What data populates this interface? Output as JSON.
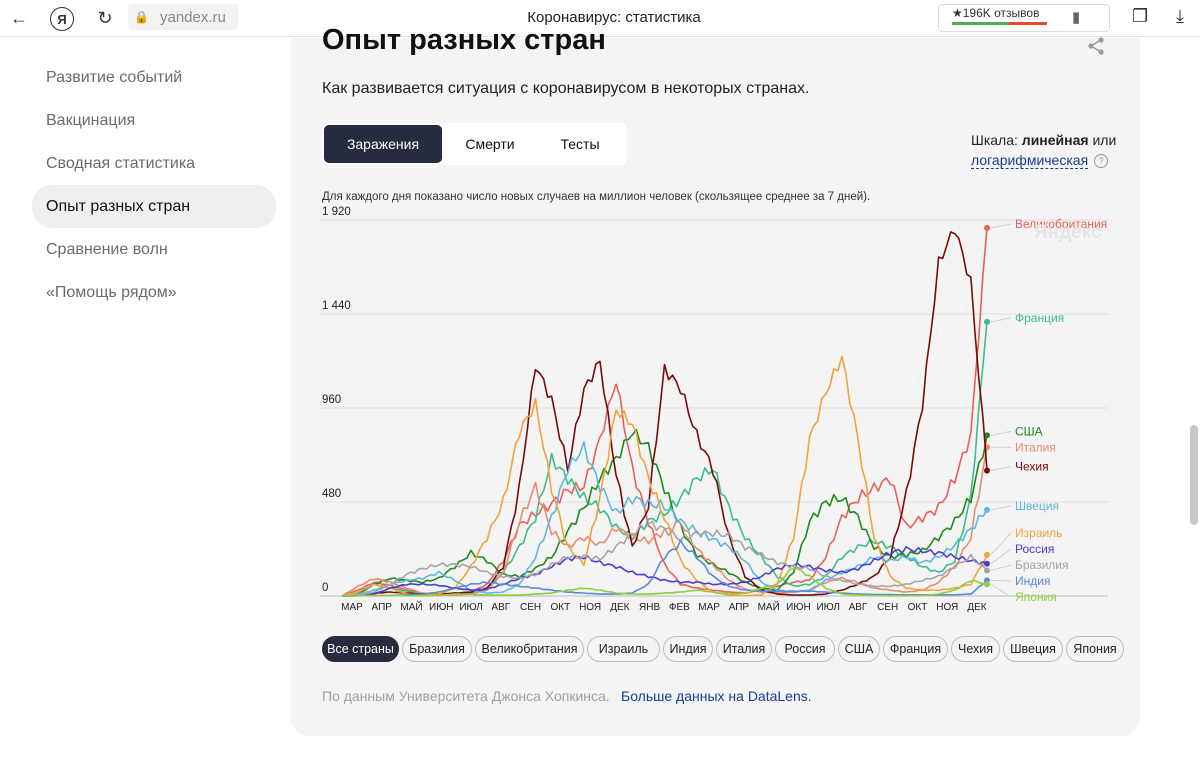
{
  "browser": {
    "url": "yandex.ru",
    "title": "Коронавирус: статистика",
    "reviews": "★196K отзывов"
  },
  "sidebar": {
    "items": [
      {
        "label": "Развитие событий"
      },
      {
        "label": "Вакцинация"
      },
      {
        "label": "Сводная статистика"
      },
      {
        "label": "Опыт разных стран"
      },
      {
        "label": "Сравнение волн"
      },
      {
        "label": "«Помощь рядом»"
      }
    ]
  },
  "main": {
    "title": "Опыт разных стран",
    "subtitle": "Как развивается ситуация с коронавирусом в некоторых странах.",
    "tabs": [
      {
        "label": "Заражения"
      },
      {
        "label": "Смерти"
      },
      {
        "label": "Тесты"
      }
    ],
    "scale_prefix": "Шкала:",
    "scale_linear": "линейная",
    "scale_or": "или",
    "scale_log": "логарифмическая",
    "help": "?",
    "note": "Для каждого дня показано число новых случаев на миллион человек (скользящее среднее за 7 дней).",
    "watermark": "Яндекс",
    "chips": [
      "Все страны",
      "Бразилия",
      "Великобритания",
      "Израиль",
      "Индия",
      "Италия",
      "Россия",
      "США",
      "Франция",
      "Чехия",
      "Швеция",
      "Япония"
    ],
    "source_text": "По данным Университета Джонса Хопкинса.",
    "source_link": "Больше данных на DataLens."
  },
  "chart_data": {
    "type": "line",
    "title": "",
    "ylim": [
      0,
      1920
    ],
    "y_ticks": [
      "0",
      "480",
      "960",
      "1 440",
      "1 920"
    ],
    "y_tick_values": [
      0,
      480,
      960,
      1440,
      1920
    ],
    "x_ticks": [
      "МАР",
      "АПР",
      "МАЙ",
      "ИЮН",
      "ИЮЛ",
      "АВГ",
      "СЕН",
      "ОКТ",
      "НОЯ",
      "ДЕК",
      "ЯНВ",
      "ФЕВ",
      "МАР",
      "АПР",
      "МАЙ",
      "ИЮН",
      "ИЮЛ",
      "АВГ",
      "СЕН",
      "ОКТ",
      "НОЯ",
      "ДЕК"
    ],
    "series": [
      {
        "name": "Великобритания",
        "color": "#e8605a",
        "values": [
          0,
          30,
          70,
          55,
          30,
          15,
          10,
          10,
          20,
          60,
          180,
          360,
          420,
          470,
          540,
          560,
          800,
          1100,
          650,
          380,
          160,
          60,
          40,
          30,
          20,
          15,
          30,
          50,
          70,
          80,
          200,
          400,
          500,
          550,
          600,
          350,
          400,
          450,
          600,
          820,
          1880
        ]
      },
      {
        "name": "Франция",
        "color": "#3dbd8a",
        "values": [
          0,
          20,
          60,
          40,
          25,
          10,
          5,
          5,
          15,
          40,
          120,
          250,
          400,
          700,
          600,
          500,
          450,
          350,
          300,
          380,
          420,
          500,
          600,
          650,
          450,
          300,
          200,
          100,
          50,
          60,
          100,
          200,
          250,
          280,
          250,
          200,
          150,
          120,
          180,
          500,
          1400
        ]
      },
      {
        "name": "США",
        "color": "#1e8a1e",
        "values": [
          0,
          10,
          60,
          90,
          80,
          70,
          90,
          150,
          220,
          180,
          110,
          100,
          140,
          200,
          330,
          450,
          600,
          700,
          840,
          760,
          550,
          350,
          210,
          160,
          120,
          70,
          40,
          30,
          120,
          380,
          480,
          500,
          400,
          250,
          200,
          210,
          230,
          300,
          380,
          500,
          820
        ]
      },
      {
        "name": "Италия",
        "color": "#e88b6f",
        "values": [
          0,
          50,
          90,
          70,
          40,
          15,
          5,
          5,
          10,
          30,
          120,
          380,
          560,
          330,
          250,
          300,
          260,
          350,
          300,
          280,
          330,
          380,
          240,
          160,
          80,
          35,
          20,
          15,
          20,
          30,
          70,
          90,
          70,
          40,
          30,
          20,
          30,
          70,
          150,
          300,
          760
        ]
      },
      {
        "name": "Чехия",
        "color": "#7a0a0a",
        "values": [
          0,
          10,
          15,
          20,
          15,
          10,
          10,
          15,
          20,
          40,
          150,
          550,
          1180,
          1000,
          650,
          1050,
          1200,
          620,
          250,
          460,
          1160,
          1060,
          820,
          650,
          300,
          100,
          30,
          10,
          5,
          5,
          10,
          30,
          60,
          100,
          200,
          520,
          980,
          1700,
          1880,
          1600,
          640
        ]
      },
      {
        "name": "Швеция",
        "color": "#5bb8e0",
        "values": [
          0,
          10,
          30,
          60,
          80,
          90,
          120,
          80,
          30,
          15,
          20,
          60,
          200,
          400,
          650,
          760,
          560,
          420,
          500,
          470,
          460,
          380,
          330,
          290,
          250,
          180,
          70,
          30,
          20,
          30,
          80,
          120,
          150,
          200,
          180,
          200,
          170,
          200,
          260,
          340,
          440
        ]
      },
      {
        "name": "Израиль",
        "color": "#f2a23a",
        "values": [
          0,
          20,
          60,
          40,
          10,
          5,
          10,
          40,
          150,
          300,
          480,
          840,
          980,
          550,
          250,
          160,
          500,
          950,
          880,
          600,
          400,
          180,
          80,
          20,
          5,
          2,
          5,
          60,
          300,
          800,
          1040,
          1220,
          800,
          300,
          100,
          40,
          30,
          30,
          40,
          60,
          210
        ]
      },
      {
        "name": "Россия",
        "color": "#4a3ecf",
        "values": [
          0,
          2,
          10,
          40,
          60,
          60,
          55,
          40,
          30,
          35,
          60,
          90,
          110,
          150,
          190,
          200,
          170,
          150,
          120,
          100,
          80,
          70,
          70,
          60,
          60,
          70,
          100,
          140,
          160,
          150,
          130,
          120,
          140,
          180,
          220,
          240,
          230,
          220,
          200,
          180,
          165
        ]
      },
      {
        "name": "Бразилия",
        "color": "#a5a5a5",
        "values": [
          0,
          5,
          20,
          60,
          110,
          140,
          160,
          160,
          150,
          120,
          100,
          90,
          110,
          160,
          200,
          200,
          190,
          250,
          320,
          370,
          340,
          290,
          320,
          320,
          310,
          250,
          210,
          170,
          150,
          140,
          100,
          80,
          60,
          50,
          50,
          60,
          80,
          100,
          150,
          200,
          130
        ]
      },
      {
        "name": "Индия",
        "color": "#5c88d8",
        "values": [
          0,
          1,
          2,
          3,
          5,
          10,
          20,
          40,
          60,
          70,
          60,
          50,
          40,
          30,
          20,
          15,
          10,
          10,
          15,
          60,
          200,
          270,
          200,
          100,
          50,
          30,
          25,
          25,
          25,
          25,
          20,
          15,
          10,
          8,
          7,
          6,
          6,
          6,
          6,
          10,
          80
        ]
      },
      {
        "name": "Япония",
        "color": "#8fce3e",
        "values": [
          0,
          1,
          3,
          2,
          1,
          1,
          3,
          10,
          8,
          5,
          5,
          5,
          10,
          15,
          30,
          40,
          30,
          15,
          10,
          10,
          15,
          20,
          30,
          20,
          10,
          15,
          40,
          60,
          150,
          100,
          40,
          10,
          5,
          2,
          1,
          1,
          2,
          10,
          30,
          80,
          60
        ]
      }
    ],
    "legend_labels": [
      "Великобритания",
      "Франция",
      "США",
      "Италия",
      "Чехия",
      "Швеция",
      "Израиль",
      "Россия",
      "Бразилия",
      "Индия",
      "Япония"
    ],
    "legend_placement": "right"
  }
}
